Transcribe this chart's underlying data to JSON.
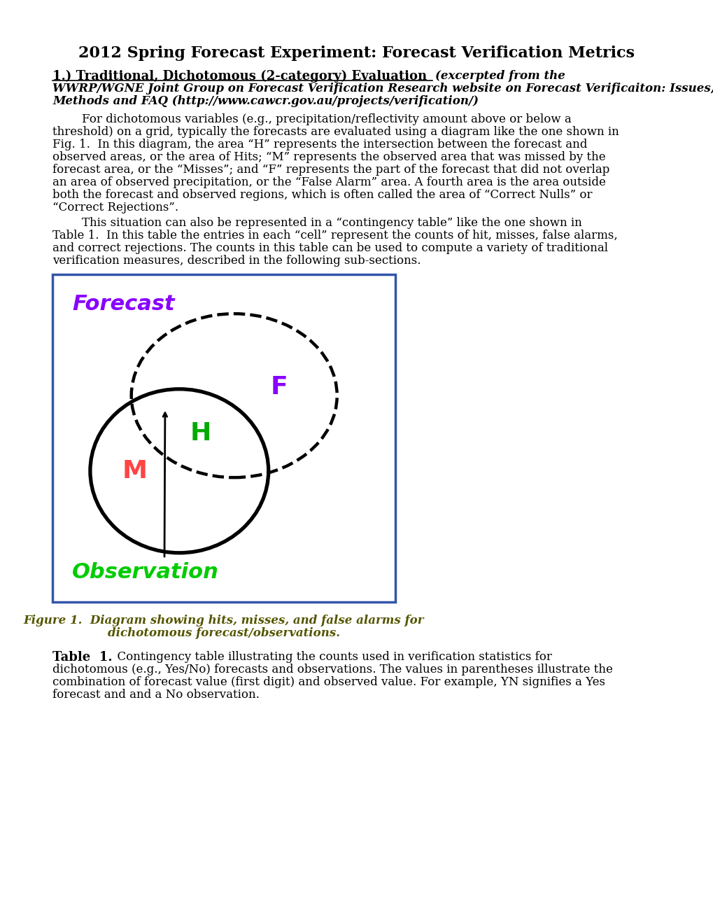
{
  "title": "2012 Spring Forecast Experiment: Forecast Verification Metrics",
  "section1_title_plain": "1.) Traditional, Dichotomous (2-category) Evaluation ",
  "section1_italic_line1": "(excerpted from the",
  "section1_italic_line2": "WWRP/WGNE Joint Group on Forecast Verification Research website on Forecast Verificaiton: Issues,",
  "section1_italic_line3": "Methods and FAQ (http://www.cawcr.gov.au/projects/verification/)",
  "para1_line1": "        For dichotomous variables (e.g., precipitation/reflectivity amount above or below a",
  "para1_line2": "threshold) on a grid, typically the forecasts are evaluated using a diagram like the one shown in",
  "para1_line3": "Fig. 1.  In this diagram, the area “H” represents the intersection between the forecast and",
  "para1_line4": "observed areas, or the area of Hits; “M” represents the observed area that was missed by the",
  "para1_line5": "forecast area, or the “Misses”; and “F” represents the part of the forecast that did not overlap",
  "para1_line6": "an area of observed precipitation, or the “False Alarm” area. A fourth area is the area outside",
  "para1_line7": "both the forecast and observed regions, which is often called the area of “Correct Nulls” or",
  "para1_line8": "“Correct Rejections”.",
  "para2_line1": "        This situation can also be represented in a “contingency table” like the one shown in",
  "para2_line2": "Table 1.  In this table the entries in each “cell” represent the counts of hit, misses, false alarms,",
  "para2_line3": "and correct rejections. The counts in this table can be used to compute a variety of traditional",
  "para2_line4": "verification measures, described in the following sub-sections.",
  "forecast_label": "Forecast",
  "forecast_color": "#8800ff",
  "observation_label": "Observation",
  "observation_color": "#00cc00",
  "H_label": "H",
  "H_color": "#00aa00",
  "M_label": "M",
  "M_color": "#ff4444",
  "F_label": "F",
  "F_color": "#8800ff",
  "fig_caption_line1": "Figure 1.  Diagram showing hits, misses, and false alarms for",
  "fig_caption_line2": "dichotomous forecast/observations.",
  "table1_bold": "Table  1.",
  "table1_rest_line1": "  Contingency table illustrating the counts used in verification statistics for",
  "table1_rest_line2": "dichotomous (e.g., Yes/No) forecasts and observations. The values in parentheses illustrate the",
  "table1_rest_line3": "combination of forecast value (first digit) and observed value. For example, YN signifies a Yes",
  "table1_rest_line4": "forecast and and a No observation.",
  "box_color": "#3355aa",
  "background_color": "#ffffff"
}
